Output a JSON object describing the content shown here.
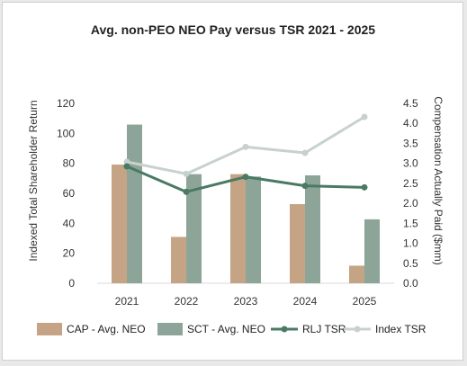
{
  "chart_data": {
    "type": "bar",
    "title": "Avg. non-PEO NEO Pay versus TSR 2021 - 2025",
    "xlabel": "",
    "categories": [
      "2021",
      "2022",
      "2023",
      "2024",
      "2025"
    ],
    "y_left": {
      "label": "Indexed Total Shareholder Return",
      "ylim": [
        0,
        120
      ],
      "ticks": [
        "0",
        "20",
        "40",
        "60",
        "80",
        "100",
        "120"
      ]
    },
    "y_right": {
      "label": "Compensation Actually Paid ($mm)",
      "ylim": [
        0,
        4.5
      ],
      "ticks": [
        "0.0",
        "0.5",
        "1.0",
        "1.5",
        "2.0",
        "2.5",
        "3.0",
        "3.5",
        "4.0",
        "4.5"
      ]
    },
    "series": [
      {
        "name": "CAP - Avg. NEO",
        "kind": "bar",
        "axis": "right",
        "color": "#c4a484",
        "values": [
          2.97,
          1.16,
          2.73,
          1.98,
          0.44
        ]
      },
      {
        "name": "SCT - Avg. NEO",
        "kind": "bar",
        "axis": "right",
        "color": "#8da598",
        "values": [
          3.97,
          2.73,
          2.67,
          2.7,
          1.6
        ]
      },
      {
        "name": "RLJ TSR",
        "kind": "line",
        "axis": "left",
        "color": "#4a7a64",
        "values": [
          78,
          61,
          71,
          65,
          64
        ]
      },
      {
        "name": "Index TSR",
        "kind": "line",
        "axis": "left",
        "color": "#c8d2cc",
        "values": [
          81,
          73,
          91,
          87,
          111
        ]
      }
    ],
    "grid": false,
    "legend_position": "bottom"
  }
}
